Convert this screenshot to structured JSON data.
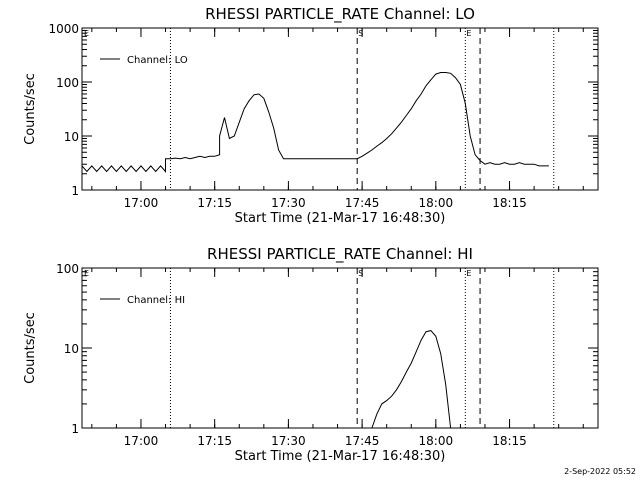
{
  "footer": "2-Sep-2022 05:52",
  "chart_data": [
    {
      "type": "line",
      "title": "RHESSI PARTICLE_RATE Channel: LO",
      "xlabel": "Start Time (21-Mar-17 16:48:30)",
      "ylabel": "Counts/sec",
      "y_scale": "log",
      "ylim": [
        1,
        1000
      ],
      "xlim": [
        "16:48",
        "18:33"
      ],
      "x_ticks": [
        "17:00",
        "17:15",
        "17:30",
        "17:45",
        "18:00",
        "18:15"
      ],
      "y_ticks": [
        "1",
        "10",
        "100",
        "1000"
      ],
      "legend": "top-left",
      "series": [
        {
          "name": "Channel: LO",
          "x": [
            "16:48",
            "16:49",
            "16:50",
            "16:51",
            "16:52",
            "16:53",
            "16:54",
            "16:55",
            "16:56",
            "16:57",
            "16:58",
            "16:59",
            "17:00",
            "17:01",
            "17:02",
            "17:03",
            "17:04",
            "17:05",
            "17:05",
            "17:06",
            "17:07",
            "17:08",
            "17:09",
            "17:10",
            "17:11",
            "17:12",
            "17:13",
            "17:14",
            "17:15",
            "17:16",
            "17:16",
            "17:17",
            "17:18",
            "17:19",
            "17:20",
            "17:21",
            "17:22",
            "17:23",
            "17:24",
            "17:25",
            "17:26",
            "17:27",
            "17:28",
            "17:29",
            "17:30",
            "17:31",
            "17:32",
            "17:33",
            "17:34",
            "17:35",
            "17:36",
            "17:37",
            "17:38",
            "17:39",
            "17:40",
            "17:41",
            "17:42",
            "17:43",
            "17:44",
            "17:45",
            "17:46",
            "17:47",
            "17:48",
            "17:49",
            "17:50",
            "17:51",
            "17:52",
            "17:53",
            "17:54",
            "17:55",
            "17:56",
            "17:57",
            "17:58",
            "17:59",
            "18:00",
            "18:01",
            "18:02",
            "18:03",
            "18:04",
            "18:05",
            "18:06",
            "18:07",
            "18:08",
            "18:09",
            "18:10",
            "18:11",
            "18:12",
            "18:13",
            "18:14",
            "18:15",
            "18:16",
            "18:17",
            "18:18",
            "18:19",
            "18:20",
            "18:21",
            "18:22",
            "18:23"
          ],
          "values": [
            2.8,
            2.2,
            2.8,
            2.2,
            2.8,
            2.2,
            2.8,
            2.2,
            2.8,
            2.2,
            2.8,
            2.2,
            2.8,
            2.2,
            2.8,
            2.2,
            2.8,
            2.2,
            3.8,
            3.8,
            3.9,
            3.8,
            4.0,
            3.8,
            4.0,
            4.2,
            4.0,
            4.2,
            4.2,
            4.5,
            10.0,
            22,
            9,
            10,
            18,
            32,
            45,
            58,
            60,
            50,
            28,
            14,
            5.5,
            3.8,
            3.8,
            3.8,
            3.8,
            3.8,
            3.8,
            3.8,
            3.8,
            3.8,
            3.8,
            3.8,
            3.8,
            3.8,
            3.8,
            3.8,
            3.8,
            4.2,
            4.8,
            5.5,
            6.5,
            7.5,
            9,
            11,
            14,
            18,
            24,
            32,
            45,
            60,
            85,
            110,
            140,
            150,
            150,
            145,
            120,
            90,
            40,
            10,
            4.5,
            3.5,
            3.0,
            3.2,
            3.0,
            3.0,
            3.2,
            3.0,
            3.0,
            3.2,
            3.0,
            3.0,
            3.0,
            2.8,
            2.8,
            2.8
          ]
        }
      ],
      "markers": [
        {
          "label": "E",
          "x": "16:48",
          "style": "dotted"
        },
        {
          "label": "",
          "x": "17:06",
          "style": "dotted"
        },
        {
          "label": "S",
          "x": "17:44",
          "style": "dashed"
        },
        {
          "label": "E",
          "x": "18:06",
          "style": "dotted"
        },
        {
          "label": "",
          "x": "18:09",
          "style": "dashed"
        },
        {
          "label": "",
          "x": "18:24",
          "style": "dotted"
        }
      ]
    },
    {
      "type": "line",
      "title": "RHESSI PARTICLE_RATE Channel: HI",
      "xlabel": "Start Time (21-Mar-17 16:48:30)",
      "ylabel": "Counts/sec",
      "y_scale": "log",
      "ylim": [
        1,
        100
      ],
      "xlim": [
        "16:48",
        "18:33"
      ],
      "x_ticks": [
        "17:00",
        "17:15",
        "17:30",
        "17:45",
        "18:00",
        "18:15"
      ],
      "y_ticks": [
        "1",
        "10",
        "100"
      ],
      "legend": "top-left",
      "series": [
        {
          "name": "Channel: HI",
          "x": [
            "17:47",
            "17:48",
            "17:49",
            "17:50",
            "17:51",
            "17:52",
            "17:53",
            "17:54",
            "17:55",
            "17:56",
            "17:57",
            "17:58",
            "17:59",
            "18:00",
            "18:01",
            "18:02",
            "18:03"
          ],
          "values": [
            1.0,
            1.5,
            2.0,
            2.2,
            2.5,
            3.0,
            3.8,
            5.0,
            6.5,
            9.0,
            12.5,
            16.0,
            16.5,
            14.0,
            8.5,
            3.5,
            1.0
          ]
        }
      ],
      "markers": [
        {
          "label": "E",
          "x": "16:48",
          "style": "dotted"
        },
        {
          "label": "",
          "x": "17:06",
          "style": "dotted"
        },
        {
          "label": "S",
          "x": "17:44",
          "style": "dashed"
        },
        {
          "label": "E",
          "x": "18:06",
          "style": "dotted"
        },
        {
          "label": "",
          "x": "18:09",
          "style": "dashed"
        },
        {
          "label": "",
          "x": "18:24",
          "style": "dotted"
        }
      ]
    }
  ]
}
